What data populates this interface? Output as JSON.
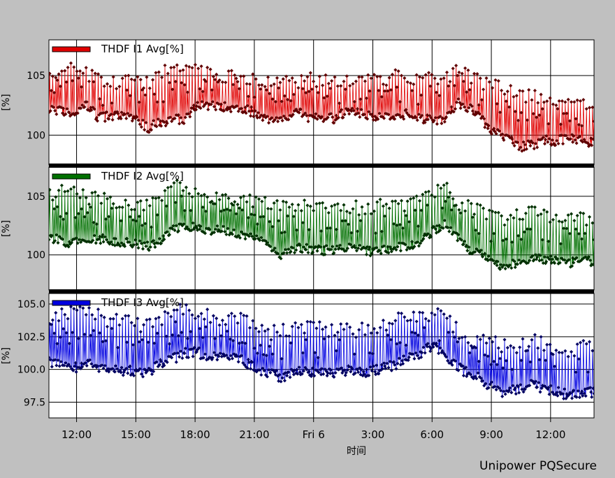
{
  "chart_data": [
    {
      "type": "line",
      "series": [
        {
          "name": "THDF I1 Avg[%]",
          "color": "#e00000",
          "dot_color": "#600000",
          "base": [
            102.3,
            102.0,
            101.8,
            102.6,
            101.5,
            101.6,
            101.6,
            101.4,
            100.6,
            101.1,
            101.3,
            101.3,
            102.6,
            102.5,
            102.4,
            102.3,
            102.2,
            101.5,
            101.2,
            101.5,
            101.9,
            101.5,
            101.5,
            101.4,
            102.0,
            101.8,
            101.6,
            101.5,
            101.3,
            102.0,
            101.3,
            101.3,
            101.4,
            102.7,
            102.3,
            101.2,
            100.2,
            99.8,
            99.0,
            99.2,
            99.6,
            99.5,
            99.8,
            99.5,
            99.3
          ],
          "peak": [
            105.5,
            105.8,
            106.2,
            105.8,
            105.4,
            105.0,
            105.2,
            105.3,
            105.0,
            105.5,
            106.5,
            106.4,
            105.8,
            105.8,
            105.6,
            105.5,
            105.3,
            105.0,
            105.2,
            105.1,
            105.0,
            105.3,
            105.2,
            105.0,
            105.1,
            105.0,
            105.1,
            105.3,
            105.5,
            105.2,
            105.0,
            105.6,
            105.2,
            106.0,
            105.4,
            105.0,
            104.8,
            104.5,
            104.0,
            103.8,
            103.8,
            103.5,
            103.4,
            103.6,
            103.0
          ],
          "legend": "THDF I1 Avg[%]",
          "ylabel": "[%]",
          "ticks": [
            "105",
            "100"
          ],
          "tick_values": [
            105,
            100
          ],
          "ylim": [
            97.5,
            108
          ]
        },
        {
          "name": "THDF I2 Avg[%]",
          "color": "#007000",
          "dot_color": "#003000",
          "base": [
            101.5,
            101.2,
            101.0,
            101.3,
            101.4,
            101.3,
            101.0,
            101.0,
            100.7,
            101.3,
            102.2,
            102.4,
            102.3,
            102.0,
            102.2,
            101.8,
            101.6,
            101.3,
            100.3,
            100.0,
            100.6,
            100.5,
            100.4,
            100.5,
            100.6,
            100.5,
            100.3,
            100.4,
            100.6,
            100.8,
            101.2,
            102.0,
            102.7,
            101.5,
            100.4,
            100.1,
            99.3,
            99.0,
            99.4,
            99.8,
            99.6,
            99.5,
            99.3,
            99.5,
            99.4
          ],
          "peak": [
            105.8,
            106.0,
            106.4,
            105.5,
            105.4,
            105.2,
            105.0,
            105.0,
            105.0,
            105.2,
            106.5,
            106.2,
            105.9,
            105.5,
            105.6,
            105.5,
            105.4,
            105.0,
            105.0,
            104.8,
            104.8,
            104.9,
            104.8,
            104.7,
            104.8,
            104.6,
            104.6,
            104.8,
            105.0,
            104.9,
            105.2,
            105.8,
            106.3,
            105.0,
            104.8,
            104.3,
            103.8,
            103.6,
            104.0,
            104.8,
            103.8,
            103.6,
            103.6,
            103.8,
            103.5
          ],
          "legend": "THDF I2 Avg[%]",
          "ylabel": "[%]",
          "ticks": [
            "105",
            "100"
          ],
          "tick_values": [
            105,
            100
          ],
          "ylim": [
            97,
            107.5
          ]
        },
        {
          "name": "THDF I3 Avg[%]",
          "color": "#0000e0",
          "dot_color": "#000060",
          "base": [
            100.6,
            100.3,
            100.1,
            100.5,
            100.2,
            100.2,
            99.9,
            99.8,
            99.8,
            100.4,
            100.8,
            101.3,
            101.3,
            101.0,
            101.1,
            101.0,
            100.4,
            100.0,
            99.6,
            99.4,
            99.8,
            99.8,
            99.7,
            99.8,
            99.9,
            99.8,
            99.9,
            100.1,
            100.4,
            100.8,
            101.3,
            101.8,
            101.2,
            100.2,
            99.6,
            99.2,
            98.5,
            98.2,
            98.6,
            98.8,
            98.6,
            98.3,
            98.0,
            98.3,
            98.2
          ],
          "peak": [
            104.5,
            104.8,
            105.0,
            104.8,
            104.6,
            104.4,
            104.2,
            104.0,
            104.0,
            104.5,
            105.2,
            105.0,
            104.8,
            104.6,
            104.5,
            104.4,
            104.2,
            103.8,
            103.4,
            103.5,
            103.8,
            103.8,
            103.6,
            103.6,
            103.8,
            103.6,
            103.8,
            104.0,
            104.3,
            104.4,
            104.6,
            104.8,
            104.4,
            103.6,
            103.0,
            102.8,
            102.6,
            102.2,
            102.4,
            102.8,
            102.4,
            102.2,
            102.0,
            102.3,
            102.2
          ],
          "legend": "THDF I3 Avg[%]",
          "ylabel": "[%]",
          "ticks": [
            "105.0",
            "102.5",
            "100.0",
            "97.5"
          ],
          "tick_values": [
            105,
            102.5,
            100,
            97.5
          ],
          "ylim": [
            96.3,
            105.8
          ]
        }
      ],
      "x_ticks": [
        "12:00",
        "15:00",
        "18:00",
        "21:00",
        "Fri 6",
        "3:00",
        "6:00",
        "9:00",
        "12:00"
      ],
      "x_tick_hours": [
        12,
        15,
        18,
        21,
        24,
        27,
        30,
        33,
        36
      ],
      "xlim": [
        10.6,
        38.2
      ],
      "xlabel": "时间",
      "grid": true,
      "legend_position": "top-left"
    }
  ],
  "footer": "Unipower PQSecure"
}
